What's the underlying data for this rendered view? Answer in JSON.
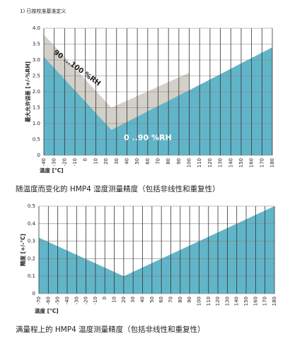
{
  "note": "1)  已按校准基准定义",
  "chart_data": [
    {
      "type": "area",
      "caption": "随温度而变化的 HMP4 湿度测量精度（包括非线性和重复性）",
      "x_label": "温度 [°C]",
      "y_label": "最大允许误差 [+/-%RH]",
      "x": [
        -40,
        25,
        100,
        180
      ],
      "series": [
        {
          "name": "90 ...100 %RH",
          "color": "#d3d0c9",
          "values": [
            3.8,
            1.5,
            2.6,
            null
          ]
        },
        {
          "name": "0 ..90 %RH",
          "color": "#61b5c9",
          "values": [
            3.1,
            0.8,
            2.05,
            3.4
          ]
        }
      ],
      "xlim": [
        -40,
        180
      ],
      "xticks": [
        -40,
        -30,
        -20,
        -10,
        0,
        10,
        20,
        30,
        40,
        50,
        60,
        70,
        80,
        90,
        100,
        110,
        120,
        130,
        140,
        150,
        160,
        170,
        180
      ],
      "ylim": [
        0,
        4
      ],
      "yticks": [
        0,
        0.5,
        {
          "value": 1,
          "label": "1.0"
        },
        1.5,
        {
          "value": 2,
          "label": "2.0"
        },
        2.5,
        {
          "value": 3,
          "label": "3.0"
        },
        3.5,
        {
          "value": 4,
          "label": "4.0"
        }
      ],
      "grid": true
    },
    {
      "type": "area",
      "caption": "满量程上的 HMP4 温度测量精度（包括非线性和重复性）",
      "x_label": "温度 [°C]",
      "y_label": "精度 [+/-°C]",
      "x": [
        -70,
        20,
        180
      ],
      "series": [
        {
          "color": "#61b5c9",
          "values": [
            0.32,
            0.1,
            0.5
          ]
        }
      ],
      "xlim": [
        -70,
        180
      ],
      "xticks": [
        -70,
        -60,
        -50,
        -40,
        -30,
        -20,
        -10,
        0,
        10,
        20,
        30,
        40,
        50,
        60,
        70,
        80,
        90,
        100,
        110,
        120,
        130,
        140,
        150,
        160,
        170,
        180
      ],
      "ylim": [
        0,
        0.5
      ],
      "yticks": [
        0,
        0.1,
        0.2,
        0.3,
        0.4,
        0.5
      ],
      "grid": true
    }
  ]
}
